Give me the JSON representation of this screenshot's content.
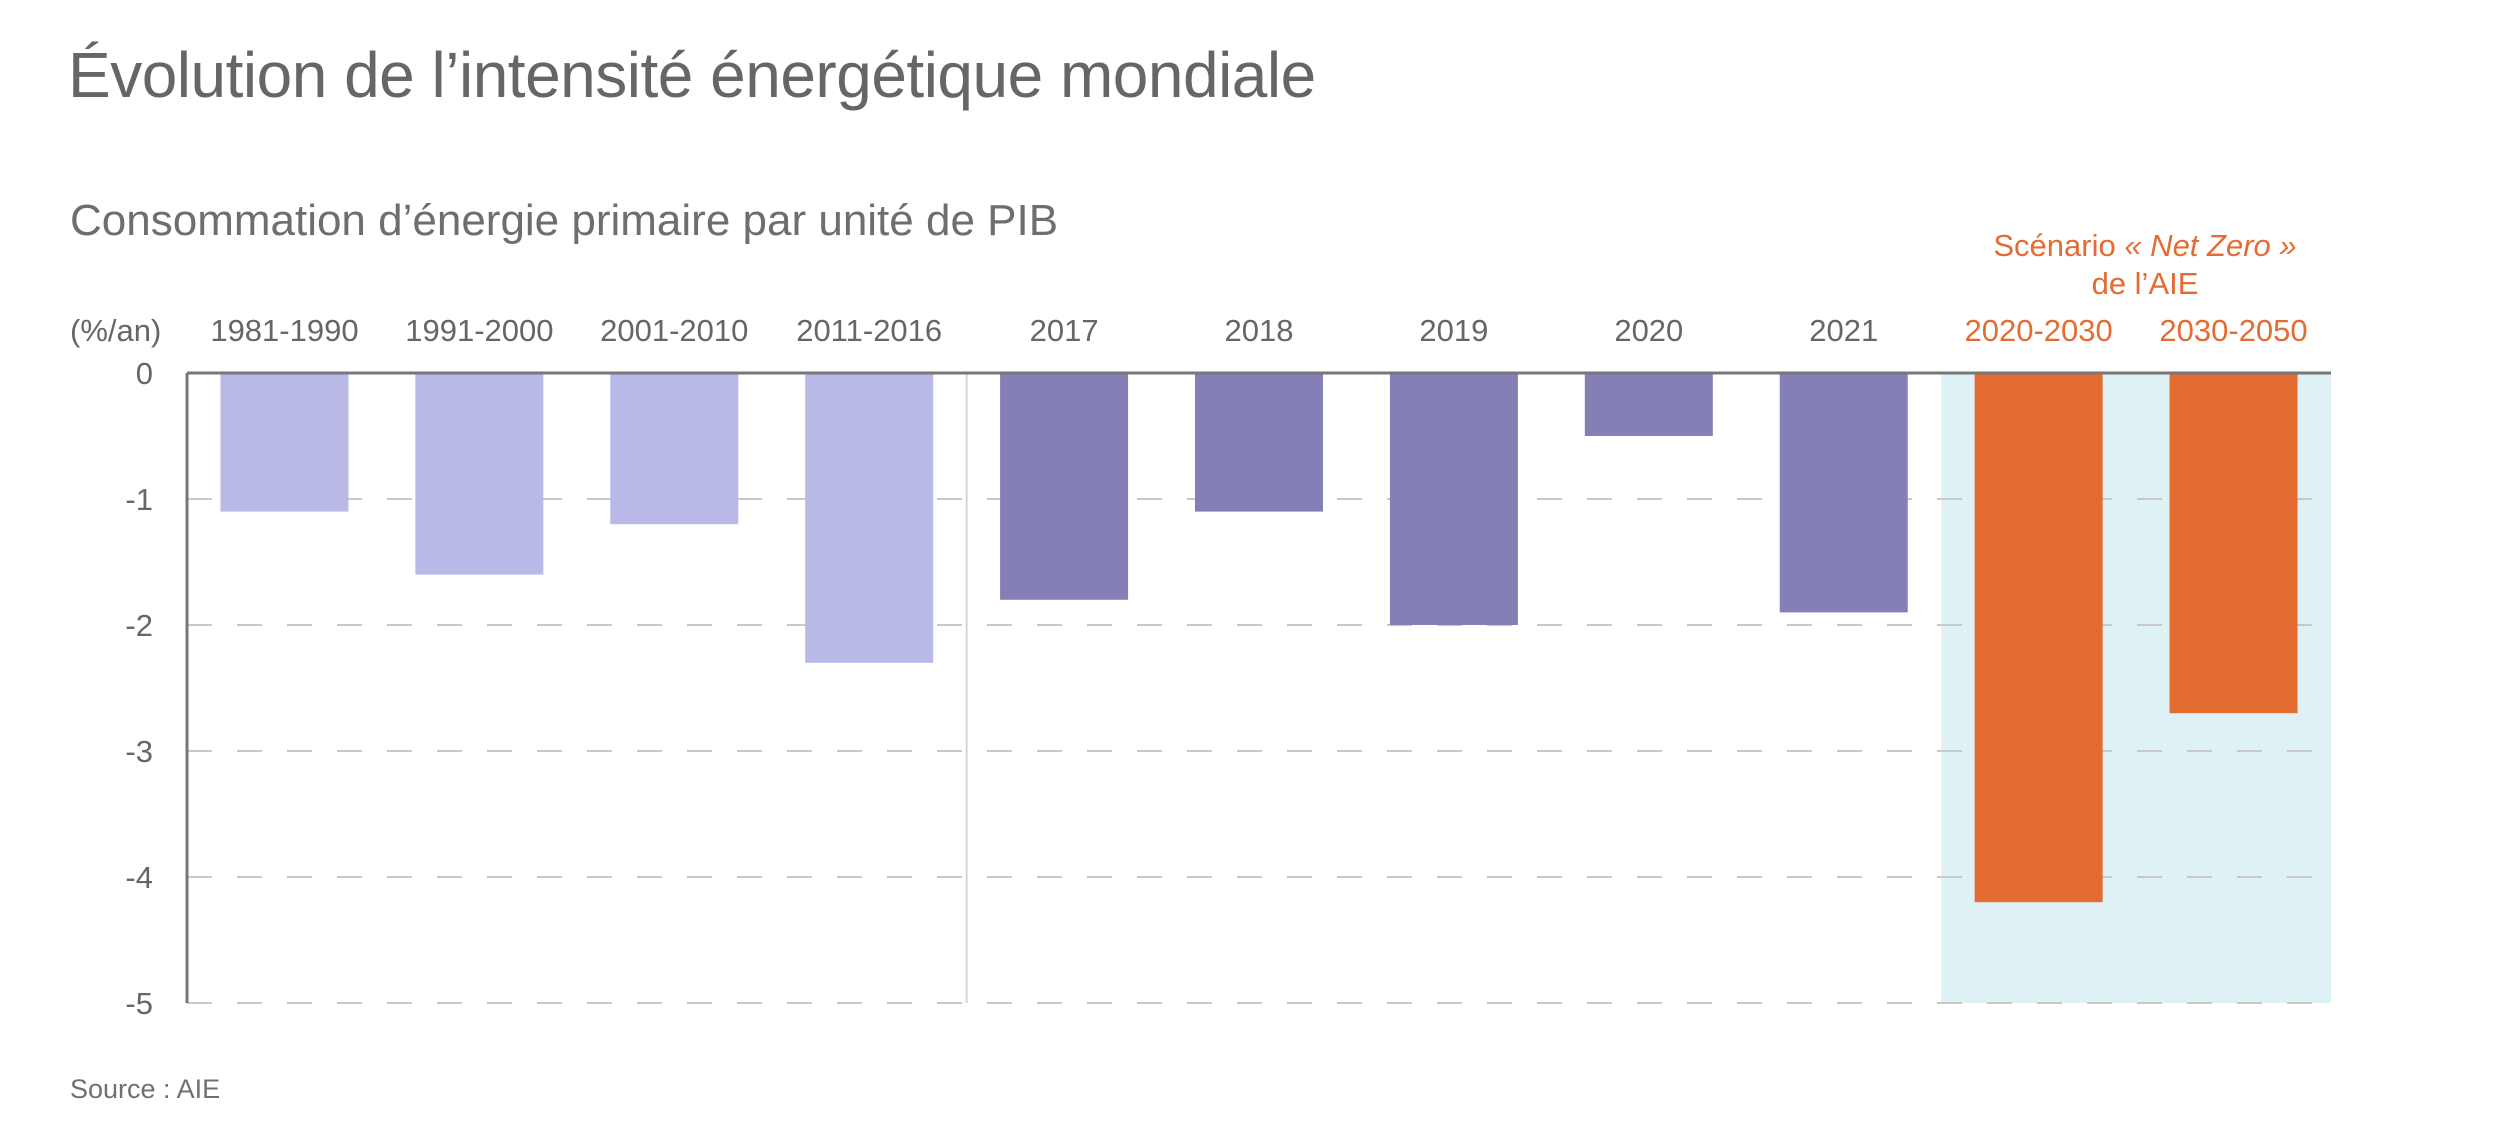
{
  "title": "Évolution de l’intensité énergétique mondiale",
  "subtitle": "Consommation d’énergie primaire par unité de PIB",
  "source": "Source : AIE",
  "colors": {
    "historical_average": "#b9b9e8",
    "annual": "#8480b6",
    "net_zero": "#e46c33",
    "net_zero_background": "#def2f6",
    "axis": "#777777",
    "grid": "#c8c8c8"
  },
  "chart_data": {
    "type": "bar",
    "title": "Évolution de l’intensité énergétique mondiale",
    "subtitle": "Consommation d’énergie primaire par unité de PIB",
    "ylabel": "(%/an)",
    "xlabel": "",
    "ylim": [
      -5,
      0
    ],
    "yticks": [
      0,
      -1,
      -2,
      -3,
      -4,
      -5
    ],
    "grid": true,
    "categories": [
      "1981-1990",
      "1991-2000",
      "2001-2010",
      "2011-2016",
      "2017",
      "2018",
      "2019",
      "2020",
      "2021",
      "2020-2030",
      "2030-2050"
    ],
    "values": [
      -1.1,
      -1.6,
      -1.2,
      -2.3,
      -1.8,
      -1.1,
      -2.0,
      -0.5,
      -1.9,
      -4.2,
      -2.7
    ],
    "groups": [
      "historical_average",
      "historical_average",
      "historical_average",
      "historical_average",
      "annual",
      "annual",
      "annual",
      "annual",
      "annual",
      "net_zero",
      "net_zero"
    ],
    "annotation": {
      "line1_prefix": "Scénario ",
      "line1_italic": "« Net Zero »",
      "line2": "de l’AIE",
      "applies_to": [
        "2020-2030",
        "2030-2050"
      ]
    },
    "source": "Source : AIE"
  }
}
